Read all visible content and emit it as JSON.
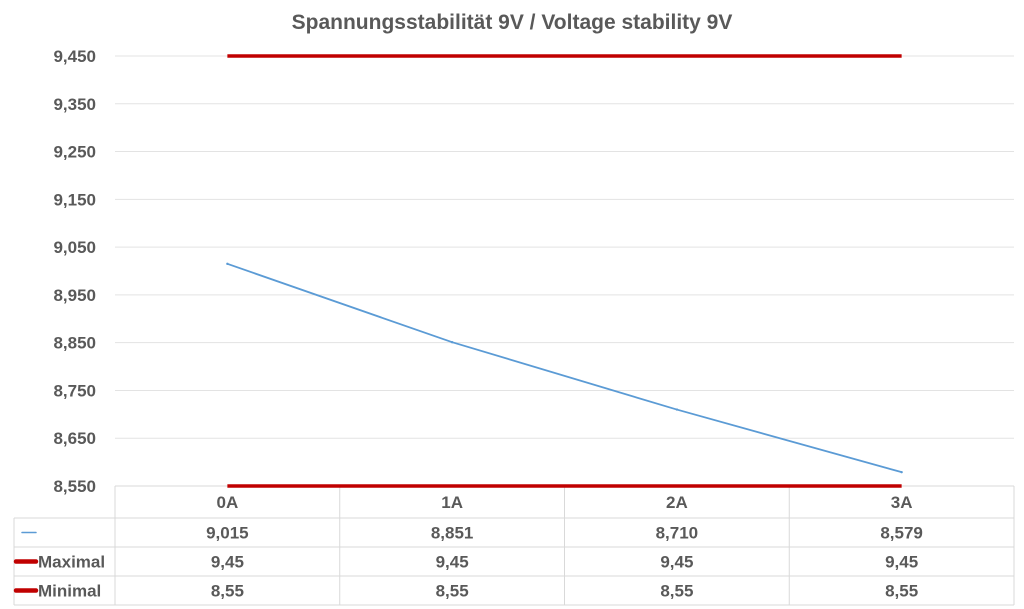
{
  "chart_data": {
    "type": "line",
    "title": "Spannungsstabilität 9V / Voltage stability 9V",
    "categories": [
      "0A",
      "1A",
      "2A",
      "3A"
    ],
    "ylim": [
      8.55,
      9.45
    ],
    "yticks": [
      8.55,
      8.65,
      8.75,
      8.85,
      8.95,
      9.05,
      9.15,
      9.25,
      9.35,
      9.45
    ],
    "ytick_labels": [
      "8,550",
      "8,650",
      "8,750",
      "8,850",
      "8,950",
      "9,050",
      "9,150",
      "9,250",
      "9,350",
      "9,450"
    ],
    "grid": true,
    "legend": "data-table",
    "series": [
      {
        "name": "",
        "values": [
          9.015,
          8.851,
          8.71,
          8.579
        ],
        "labels": [
          "9,015",
          "8,851",
          "8,710",
          "8,579"
        ],
        "color": "#5b9bd5"
      },
      {
        "name": "Maximal",
        "values": [
          9.45,
          9.45,
          9.45,
          9.45
        ],
        "labels": [
          "9,45",
          "9,45",
          "9,45",
          "9,45"
        ],
        "color": "#c00000"
      },
      {
        "name": "Minimal",
        "values": [
          8.55,
          8.55,
          8.55,
          8.55
        ],
        "labels": [
          "8,55",
          "8,55",
          "8,55",
          "8,55"
        ],
        "color": "#c00000"
      }
    ]
  }
}
